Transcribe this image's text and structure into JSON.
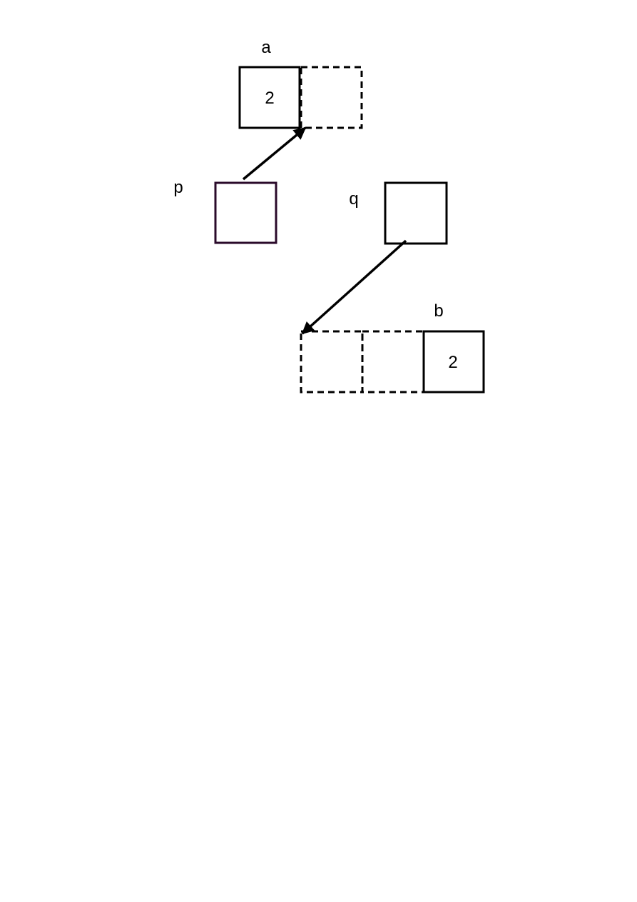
{
  "labels": {
    "a": "a",
    "p": "p",
    "q": "q",
    "b": "b"
  },
  "array_a": {
    "cell_0_value": "2",
    "cell_1_value": ""
  },
  "array_b": {
    "cell_0_value": "",
    "cell_1_value": "",
    "cell_2_value": "2"
  },
  "pointer_p": {
    "value": "",
    "points_to": "a[1]"
  },
  "pointer_q": {
    "value": "",
    "points_to": "b[0]"
  },
  "colors": {
    "stroke": "#000000",
    "pointer_p_border": "#2a0a2a",
    "background": "#ffffff"
  }
}
